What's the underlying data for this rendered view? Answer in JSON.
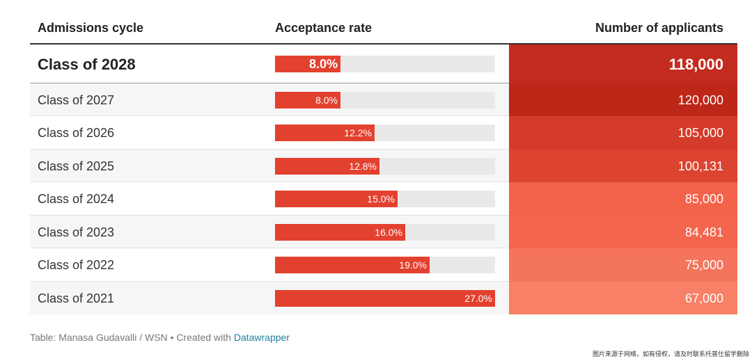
{
  "header": {
    "col_cycle": "Admissions cycle",
    "col_rate": "Acceptance rate",
    "col_applicants": "Number of applicants"
  },
  "chart_data": {
    "type": "table",
    "columns": [
      "Admissions cycle",
      "Acceptance rate",
      "Number of applicants"
    ],
    "rows": [
      {
        "cycle": "Class of 2028",
        "rate": 8.0,
        "rate_label": "8.0%",
        "applicants": "118,000",
        "color": "#c42b1f"
      },
      {
        "cycle": "Class of 2027",
        "rate": 8.0,
        "rate_label": "8.0%",
        "applicants": "120,000",
        "color": "#bd2718"
      },
      {
        "cycle": "Class of 2026",
        "rate": 12.2,
        "rate_label": "12.2%",
        "applicants": "105,000",
        "color": "#d53b2a"
      },
      {
        "cycle": "Class of 2025",
        "rate": 12.8,
        "rate_label": "12.8%",
        "applicants": "100,131",
        "color": "#dc4330"
      },
      {
        "cycle": "Class of 2024",
        "rate": 15.0,
        "rate_label": "15.0%",
        "applicants": "85,000",
        "color": "#f2634a"
      },
      {
        "cycle": "Class of 2023",
        "rate": 16.0,
        "rate_label": "16.0%",
        "applicants": "84,481",
        "color": "#f3654c"
      },
      {
        "cycle": "Class of 2022",
        "rate": 19.0,
        "rate_label": "19.0%",
        "applicants": "75,000",
        "color": "#f5755c"
      },
      {
        "cycle": "Class of 2021",
        "rate": 27.0,
        "rate_label": "27.0%",
        "applicants": "67,000",
        "color": "#f78066"
      }
    ],
    "rate_max": 27.0,
    "bar_color": "#e3412f"
  },
  "footer": {
    "source": "Table: Manasa Gudavalli / WSN • Created with ",
    "link": "Datawrapper"
  },
  "watermark": "图片来源于网络，如有侵权，请及时联系托普仕留学删除"
}
